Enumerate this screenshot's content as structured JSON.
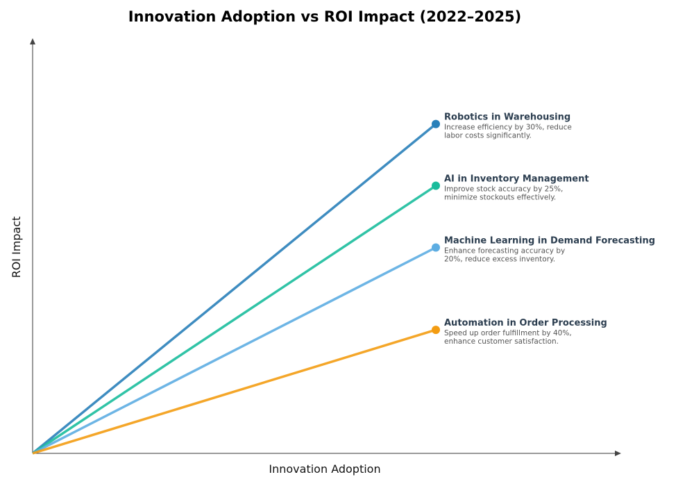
{
  "chart_data": {
    "type": "line",
    "title": "Innovation Adoption vs ROI Impact (2022–2025)",
    "xlabel": "Innovation Adoption",
    "ylabel": "ROI Impact",
    "xlim": [
      0,
      10
    ],
    "ylim": [
      0,
      10
    ],
    "grid": false,
    "series": [
      {
        "name": "Robotics in Warehousing",
        "x": [
          0,
          7
        ],
        "y": [
          0,
          8
        ],
        "color": "#2980b9",
        "desc": [
          "Increase efficiency by 30%, reduce",
          "labor costs significantly."
        ]
      },
      {
        "name": "AI in Inventory Management",
        "x": [
          0,
          7
        ],
        "y": [
          0,
          6.5
        ],
        "color": "#1abc9c",
        "desc": [
          "Improve stock accuracy by 25%,",
          "minimize stockouts effectively."
        ]
      },
      {
        "name": "Machine Learning in Demand Forecasting",
        "x": [
          0,
          7
        ],
        "y": [
          0,
          5
        ],
        "color": "#5dade2",
        "desc": [
          "Enhance forecasting accuracy by",
          "20%, reduce excess inventory."
        ]
      },
      {
        "name": "Automation in Order Processing",
        "x": [
          0,
          7
        ],
        "y": [
          0,
          3
        ],
        "color": "#f39c12",
        "desc": [
          "Speed up order fulfillment by 40%,",
          "enhance customer satisfaction."
        ]
      }
    ]
  }
}
